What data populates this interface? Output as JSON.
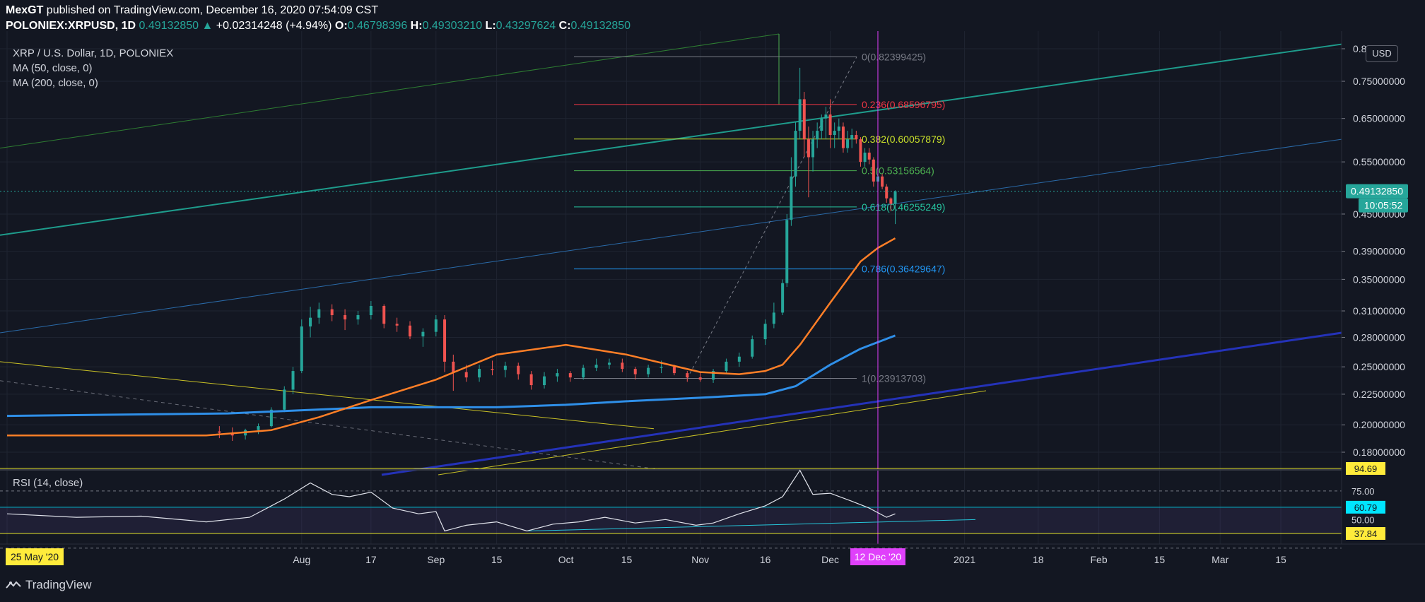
{
  "header": {
    "publisher": "MexGT",
    "published_text": "published on TradingView.com, December 16, 2020 07:54:09 CST",
    "symbol": "POLONIEX:XRPUSD, 1D",
    "last": "0.49132850",
    "change": "+0.02314248 (+4.94%)",
    "o_label": "O:",
    "o_val": "0.46798396",
    "h_label": "H:",
    "h_val": "0.49303210",
    "l_label": "L:",
    "l_val": "0.43297624",
    "c_label": "C:",
    "c_val": "0.49132850"
  },
  "legend": {
    "title": "XRP / U.S. Dollar, 1D, POLONIEX",
    "ma50": "MA (50, close, 0)",
    "ma200": "MA (200, close, 0)",
    "rsi": "RSI (14, close)"
  },
  "currency_button": "USD",
  "branding": "TradingView",
  "colors": {
    "background": "#131722",
    "up": "#26a69a",
    "down": "#ef5350",
    "ma50": "#ff7f27",
    "ma200": "#2f8fe8",
    "crosshair": "#e040fb",
    "cursor_date_bg": "#e040fb"
  },
  "chart_data": {
    "type": "candlestick",
    "log_scale": true,
    "price_axis_labels": [
      "0.85",
      "0.75000000",
      "0.65000000",
      "0.55000000",
      "0.45000000",
      "0.39000000",
      "0.35000000",
      "0.31000000",
      "0.28000000",
      "0.25000000",
      "0.22500000",
      "0.20000000",
      "0.18000000"
    ],
    "price_axis_values": [
      0.85,
      0.75,
      0.65,
      0.55,
      0.45,
      0.39,
      0.35,
      0.31,
      0.28,
      0.25,
      0.225,
      0.2,
      0.18
    ],
    "current_price_label": "0.49132850",
    "current_price": 0.4913285,
    "countdown_label": "10:05:52",
    "time_axis_labels": [
      "25 May '20",
      "Aug",
      "17",
      "Sep",
      "15",
      "Oct",
      "15",
      "Nov",
      "16",
      "Dec",
      "12 Dec '20",
      "2021",
      "18",
      "Feb",
      "15",
      "Mar",
      "15"
    ],
    "time_axis_dates": [
      "2020-05-25",
      "2020-08-01",
      "2020-08-17",
      "2020-09-01",
      "2020-09-15",
      "2020-10-01",
      "2020-10-15",
      "2020-11-01",
      "2020-11-16",
      "2020-12-01",
      "2020-12-12",
      "2021-01-01",
      "2021-01-18",
      "2021-02-01",
      "2021-02-15",
      "2021-03-01",
      "2021-03-15"
    ],
    "crosshair_date": "2020-12-12",
    "fib_levels": [
      {
        "label": "0(0.82399425)",
        "value": 0.82399425,
        "color": "#787b86"
      },
      {
        "label": "0.236(0.68596795)",
        "value": 0.68596795,
        "color": "#f23645"
      },
      {
        "label": "0.382(0.60057879)",
        "value": 0.60057879,
        "color": "#c9e02b"
      },
      {
        "label": "0.5(0.53156564)",
        "value": 0.53156564,
        "color": "#4caf50"
      },
      {
        "label": "0.618(0.46255249)",
        "value": 0.46255249,
        "color": "#26c6a0"
      },
      {
        "label": "0.786(0.36429647)",
        "value": 0.36429647,
        "color": "#2196f3"
      },
      {
        "label": "1(0.23913703)",
        "value": 0.23913703,
        "color": "#787b86"
      }
    ],
    "candles": [
      [
        "2020-07-13",
        0.195,
        0.199,
        0.19,
        0.194
      ],
      [
        "2020-07-16",
        0.194,
        0.198,
        0.188,
        0.192
      ],
      [
        "2020-07-19",
        0.192,
        0.197,
        0.189,
        0.196
      ],
      [
        "2020-07-22",
        0.196,
        0.201,
        0.193,
        0.199
      ],
      [
        "2020-07-25",
        0.199,
        0.214,
        0.198,
        0.212
      ],
      [
        "2020-07-28",
        0.212,
        0.232,
        0.21,
        0.229
      ],
      [
        "2020-07-30",
        0.229,
        0.25,
        0.225,
        0.246
      ],
      [
        "2020-08-01",
        0.246,
        0.3,
        0.244,
        0.292
      ],
      [
        "2020-08-03",
        0.292,
        0.315,
        0.28,
        0.302
      ],
      [
        "2020-08-05",
        0.302,
        0.32,
        0.295,
        0.312
      ],
      [
        "2020-08-08",
        0.312,
        0.318,
        0.298,
        0.305
      ],
      [
        "2020-08-11",
        0.305,
        0.312,
        0.288,
        0.3
      ],
      [
        "2020-08-14",
        0.3,
        0.31,
        0.294,
        0.305
      ],
      [
        "2020-08-17",
        0.305,
        0.322,
        0.3,
        0.316
      ],
      [
        "2020-08-20",
        0.316,
        0.318,
        0.29,
        0.295
      ],
      [
        "2020-08-23",
        0.295,
        0.302,
        0.286,
        0.293
      ],
      [
        "2020-08-26",
        0.293,
        0.298,
        0.278,
        0.281
      ],
      [
        "2020-08-29",
        0.281,
        0.29,
        0.27,
        0.286
      ],
      [
        "2020-09-01",
        0.286,
        0.305,
        0.281,
        0.3
      ],
      [
        "2020-09-03",
        0.3,
        0.305,
        0.245,
        0.255
      ],
      [
        "2020-09-05",
        0.255,
        0.262,
        0.228,
        0.245
      ],
      [
        "2020-09-08",
        0.245,
        0.252,
        0.236,
        0.24
      ],
      [
        "2020-09-11",
        0.24,
        0.252,
        0.236,
        0.248
      ],
      [
        "2020-09-14",
        0.248,
        0.256,
        0.242,
        0.247
      ],
      [
        "2020-09-17",
        0.247,
        0.255,
        0.24,
        0.251
      ],
      [
        "2020-09-20",
        0.251,
        0.254,
        0.238,
        0.243
      ],
      [
        "2020-09-23",
        0.243,
        0.246,
        0.229,
        0.233
      ],
      [
        "2020-09-26",
        0.233,
        0.245,
        0.23,
        0.241
      ],
      [
        "2020-09-29",
        0.241,
        0.248,
        0.236,
        0.244
      ],
      [
        "2020-10-02",
        0.244,
        0.246,
        0.236,
        0.24
      ],
      [
        "2020-10-05",
        0.24,
        0.252,
        0.238,
        0.249
      ],
      [
        "2020-10-08",
        0.249,
        0.258,
        0.246,
        0.252
      ],
      [
        "2020-10-11",
        0.252,
        0.258,
        0.248,
        0.254
      ],
      [
        "2020-10-14",
        0.254,
        0.258,
        0.245,
        0.248
      ],
      [
        "2020-10-17",
        0.248,
        0.25,
        0.238,
        0.243
      ],
      [
        "2020-10-20",
        0.243,
        0.252,
        0.24,
        0.249
      ],
      [
        "2020-10-23",
        0.249,
        0.256,
        0.244,
        0.25
      ],
      [
        "2020-10-26",
        0.25,
        0.252,
        0.242,
        0.244
      ],
      [
        "2020-10-29",
        0.244,
        0.246,
        0.236,
        0.24
      ],
      [
        "2020-11-01",
        0.24,
        0.245,
        0.236,
        0.238
      ],
      [
        "2020-11-04",
        0.238,
        0.248,
        0.235,
        0.246
      ],
      [
        "2020-11-07",
        0.246,
        0.258,
        0.244,
        0.255
      ],
      [
        "2020-11-10",
        0.255,
        0.264,
        0.25,
        0.26
      ],
      [
        "2020-11-13",
        0.26,
        0.282,
        0.258,
        0.278
      ],
      [
        "2020-11-16",
        0.278,
        0.3,
        0.272,
        0.295
      ],
      [
        "2020-11-18",
        0.295,
        0.32,
        0.29,
        0.308
      ],
      [
        "2020-11-20",
        0.308,
        0.35,
        0.305,
        0.345
      ],
      [
        "2020-11-21",
        0.345,
        0.45,
        0.34,
        0.44
      ],
      [
        "2020-11-22",
        0.44,
        0.56,
        0.43,
        0.52
      ],
      [
        "2020-11-23",
        0.52,
        0.64,
        0.5,
        0.62
      ],
      [
        "2020-11-24",
        0.62,
        0.79,
        0.6,
        0.7
      ],
      [
        "2020-11-25",
        0.7,
        0.72,
        0.56,
        0.6
      ],
      [
        "2020-11-26",
        0.6,
        0.63,
        0.48,
        0.56
      ],
      [
        "2020-11-27",
        0.56,
        0.62,
        0.53,
        0.6
      ],
      [
        "2020-11-28",
        0.6,
        0.64,
        0.58,
        0.62
      ],
      [
        "2020-11-29",
        0.62,
        0.66,
        0.6,
        0.65
      ],
      [
        "2020-11-30",
        0.65,
        0.68,
        0.6,
        0.66
      ],
      [
        "2020-12-01",
        0.66,
        0.7,
        0.58,
        0.61
      ],
      [
        "2020-12-02",
        0.61,
        0.64,
        0.58,
        0.62
      ],
      [
        "2020-12-03",
        0.62,
        0.65,
        0.6,
        0.63
      ],
      [
        "2020-12-04",
        0.63,
        0.64,
        0.57,
        0.58
      ],
      [
        "2020-12-05",
        0.58,
        0.62,
        0.57,
        0.6
      ],
      [
        "2020-12-06",
        0.6,
        0.625,
        0.58,
        0.61
      ],
      [
        "2020-12-07",
        0.61,
        0.62,
        0.59,
        0.6
      ],
      [
        "2020-12-08",
        0.6,
        0.605,
        0.54,
        0.55
      ],
      [
        "2020-12-09",
        0.55,
        0.58,
        0.54,
        0.57
      ],
      [
        "2020-12-10",
        0.57,
        0.58,
        0.545,
        0.555
      ],
      [
        "2020-12-11",
        0.555,
        0.56,
        0.5,
        0.51
      ],
      [
        "2020-12-12",
        0.51,
        0.53,
        0.5,
        0.52
      ],
      [
        "2020-12-13",
        0.52,
        0.525,
        0.495,
        0.5
      ],
      [
        "2020-12-14",
        0.5,
        0.505,
        0.47,
        0.478
      ],
      [
        "2020-12-15",
        0.478,
        0.48,
        0.455,
        0.468
      ],
      [
        "2020-12-16",
        0.468,
        0.493,
        0.433,
        0.491
      ]
    ],
    "ma50": [
      [
        "2020-05-25",
        0.192
      ],
      [
        "2020-07-10",
        0.192
      ],
      [
        "2020-07-25",
        0.196
      ],
      [
        "2020-08-05",
        0.206
      ],
      [
        "2020-08-17",
        0.22
      ],
      [
        "2020-09-01",
        0.238
      ],
      [
        "2020-09-15",
        0.262
      ],
      [
        "2020-10-01",
        0.272
      ],
      [
        "2020-10-15",
        0.262
      ],
      [
        "2020-11-01",
        0.245
      ],
      [
        "2020-11-10",
        0.243
      ],
      [
        "2020-11-16",
        0.246
      ],
      [
        "2020-11-20",
        0.252
      ],
      [
        "2020-11-24",
        0.272
      ],
      [
        "2020-12-01",
        0.32
      ],
      [
        "2020-12-08",
        0.375
      ],
      [
        "2020-12-12",
        0.395
      ],
      [
        "2020-12-16",
        0.41
      ]
    ],
    "ma200": [
      [
        "2020-05-25",
        0.207
      ],
      [
        "2020-07-15",
        0.209
      ],
      [
        "2020-08-17",
        0.214
      ],
      [
        "2020-09-15",
        0.214
      ],
      [
        "2020-10-01",
        0.216
      ],
      [
        "2020-10-15",
        0.219
      ],
      [
        "2020-11-01",
        0.222
      ],
      [
        "2020-11-16",
        0.225
      ],
      [
        "2020-11-23",
        0.232
      ],
      [
        "2020-12-01",
        0.252
      ],
      [
        "2020-12-08",
        0.268
      ],
      [
        "2020-12-16",
        0.282
      ]
    ],
    "rsi": {
      "levels_labels": [
        "94.69",
        "75.00",
        "60.79",
        "50.00",
        "37.84"
      ],
      "levels": [
        94.69,
        75,
        60.79,
        50,
        37.84
      ],
      "values": [
        [
          "2020-05-25",
          55
        ],
        [
          "2020-06-10",
          52
        ],
        [
          "2020-06-25",
          53
        ],
        [
          "2020-07-10",
          48
        ],
        [
          "2020-07-20",
          52
        ],
        [
          "2020-07-28",
          68
        ],
        [
          "2020-08-03",
          82
        ],
        [
          "2020-08-08",
          72
        ],
        [
          "2020-08-12",
          70
        ],
        [
          "2020-08-17",
          74
        ],
        [
          "2020-08-22",
          60
        ],
        [
          "2020-08-28",
          55
        ],
        [
          "2020-09-01",
          57
        ],
        [
          "2020-09-03",
          40
        ],
        [
          "2020-09-08",
          45
        ],
        [
          "2020-09-15",
          48
        ],
        [
          "2020-09-22",
          40
        ],
        [
          "2020-09-28",
          46
        ],
        [
          "2020-10-04",
          48
        ],
        [
          "2020-10-10",
          52
        ],
        [
          "2020-10-17",
          47
        ],
        [
          "2020-10-24",
          50
        ],
        [
          "2020-10-31",
          45
        ],
        [
          "2020-11-04",
          47
        ],
        [
          "2020-11-10",
          55
        ],
        [
          "2020-11-16",
          62
        ],
        [
          "2020-11-20",
          70
        ],
        [
          "2020-11-24",
          93
        ],
        [
          "2020-11-27",
          72
        ],
        [
          "2020-12-01",
          73
        ],
        [
          "2020-12-06",
          66
        ],
        [
          "2020-12-10",
          60
        ],
        [
          "2020-12-14",
          52
        ],
        [
          "2020-12-16",
          55
        ]
      ]
    }
  }
}
